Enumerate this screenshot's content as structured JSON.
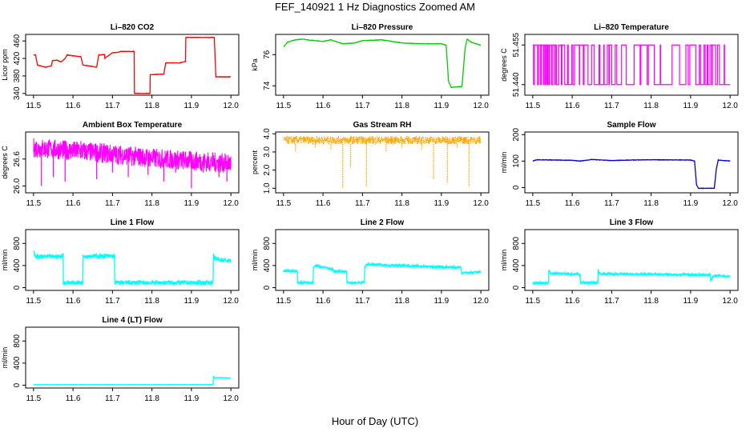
{
  "figure": {
    "title": "FEF_140921  1 Hz Diagnostics Zoomed AM",
    "xlabel": "Hour of Day (UTC)"
  },
  "chart_data": [
    {
      "type": "line",
      "title": "Li–820 CO2",
      "ylabel": "Licor ppm",
      "color": "#ff0000",
      "xlim": [
        11.48,
        12.02
      ],
      "ylim": [
        336,
        475
      ],
      "x_ticks": [
        "11.5",
        "11.6",
        "11.7",
        "11.8",
        "11.9",
        "12.0"
      ],
      "y_ticks": [
        "340",
        "380",
        "420",
        "460"
      ],
      "series": [
        {
          "x": [
            11.5,
            11.505,
            11.51,
            11.53,
            11.545,
            11.548,
            11.56,
            11.57,
            11.58,
            11.585,
            11.6,
            11.62,
            11.625,
            11.64,
            11.66,
            11.665,
            11.68,
            11.68,
            11.7,
            11.715,
            11.72,
            11.74,
            11.755,
            11.755,
            11.795,
            11.795,
            11.83,
            11.835,
            11.87,
            11.885,
            11.885,
            11.958,
            11.962,
            11.98,
            12.0
          ],
          "y": [
            428,
            428,
            405,
            400,
            403,
            415,
            416,
            412,
            420,
            428,
            426,
            424,
            405,
            403,
            400,
            428,
            429,
            420,
            433,
            434,
            436,
            436,
            436,
            340,
            340,
            383,
            384,
            410,
            410,
            413,
            468,
            468,
            378,
            378,
            378
          ]
        }
      ]
    },
    {
      "type": "line",
      "title": "Li–820 Pressure",
      "ylabel": "kPa",
      "color": "#00cc00",
      "xlim": [
        11.48,
        12.02
      ],
      "ylim": [
        73.4,
        77.3
      ],
      "x_ticks": [
        "11.5",
        "11.6",
        "11.7",
        "11.8",
        "11.9",
        "12.0"
      ],
      "y_ticks": [
        "74",
        "76"
      ],
      "series": [
        {
          "x": [
            11.5,
            11.51,
            11.53,
            11.55,
            11.56,
            11.6,
            11.62,
            11.65,
            11.68,
            11.7,
            11.75,
            11.8,
            11.85,
            11.9,
            11.912,
            11.918,
            11.925,
            11.945,
            11.952,
            11.96,
            11.965,
            11.975,
            12.0
          ],
          "y": [
            76.5,
            76.8,
            76.95,
            77.0,
            76.95,
            76.85,
            76.95,
            76.7,
            76.75,
            76.9,
            76.95,
            76.75,
            76.7,
            76.7,
            76.6,
            74.3,
            73.9,
            73.95,
            73.95,
            76.4,
            77.0,
            76.8,
            76.6
          ]
        }
      ]
    },
    {
      "type": "line",
      "title": "Li–820 Temperature",
      "ylabel": "degrees C",
      "color": "#ff00ff",
      "xlim": [
        11.48,
        12.02
      ],
      "ylim": [
        51.436,
        51.459
      ],
      "x_ticks": [
        "11.5",
        "11.6",
        "11.7",
        "11.8",
        "11.9",
        "12.0"
      ],
      "y_ticks": [
        "51.440",
        "51.455"
      ],
      "levels": [
        51.44,
        51.455
      ],
      "toggle_x": [
        11.502,
        11.504,
        11.512,
        11.515,
        11.52,
        11.522,
        11.527,
        11.529,
        11.532,
        11.533,
        11.536,
        11.538,
        11.541,
        11.543,
        11.548,
        11.551,
        11.556,
        11.557,
        11.56,
        11.566,
        11.572,
        11.574,
        11.581,
        11.588,
        11.59,
        11.599,
        11.602,
        11.606,
        11.618,
        11.619,
        11.628,
        11.63,
        11.64,
        11.649,
        11.656,
        11.668,
        11.67,
        11.68,
        11.681,
        11.689,
        11.693,
        11.694,
        11.7,
        11.709,
        11.713,
        11.725,
        11.737,
        11.757,
        11.772,
        11.774,
        11.79,
        11.793,
        11.808,
        11.823,
        11.824,
        11.853,
        11.872,
        11.888,
        11.894,
        11.898,
        11.913,
        11.922,
        11.925,
        11.934,
        11.937,
        11.942,
        11.944,
        11.949,
        11.953,
        11.955,
        11.963,
        11.968,
        11.973,
        11.985,
        11.986
      ]
    },
    {
      "type": "line",
      "title": "Ambient Box Temperature",
      "ylabel": "degrees C",
      "color": "#ff00ff",
      "xlim": [
        11.48,
        12.02
      ],
      "ylim": [
        25.85,
        27.2
      ],
      "x_ticks": [
        "11.5",
        "11.6",
        "11.7",
        "11.8",
        "11.9",
        "12.0"
      ],
      "y_ticks": [
        "26.0",
        "26.6"
      ],
      "band_center": [
        26.85,
        26.75,
        26.62,
        26.5
      ],
      "band_halfwidth": 0.22,
      "spike_x": [
        11.52,
        11.55,
        11.58,
        11.62,
        11.66,
        11.7,
        11.74,
        11.79,
        11.83,
        11.86,
        11.9,
        11.93,
        11.97,
        11.99
      ],
      "spike_y": [
        26.0,
        26.2,
        26.1,
        27.0,
        26.15,
        26.3,
        26.2,
        26.25,
        26.1,
        26.3,
        25.95,
        26.3,
        26.2,
        26.1
      ]
    },
    {
      "type": "line",
      "title": "Gas Stream RH",
      "ylabel": "percent",
      "color": "#ffa500",
      "xlim": [
        11.48,
        12.02
      ],
      "ylim": [
        0.75,
        4.1
      ],
      "x_ticks": [
        "11.5",
        "11.6",
        "11.7",
        "11.8",
        "11.9",
        "12.0"
      ],
      "y_ticks": [
        "1.0",
        "2.0",
        "3.0",
        "4.0"
      ],
      "baseline": 3.65,
      "dip_x": [
        11.53,
        11.58,
        11.62,
        11.65,
        11.67,
        11.71,
        11.76,
        11.8,
        11.85,
        11.88,
        11.915,
        11.94,
        11.97
      ],
      "dip_y": [
        3.0,
        3.2,
        3.1,
        1.0,
        2.1,
        1.1,
        3.0,
        3.2,
        3.1,
        1.5,
        1.3,
        3.2,
        1.1
      ]
    },
    {
      "type": "line",
      "title": "Sample Flow",
      "ylabel": "ml/min",
      "color": "#0000cc",
      "xlim": [
        11.48,
        12.02
      ],
      "ylim": [
        -20,
        210
      ],
      "x_ticks": [
        "11.5",
        "11.6",
        "11.7",
        "11.8",
        "11.9",
        "12.0"
      ],
      "y_ticks": [
        "0",
        "100",
        "200"
      ],
      "series": [
        {
          "x": [
            11.5,
            11.51,
            11.6,
            11.62,
            11.65,
            11.7,
            11.75,
            11.8,
            11.9,
            11.91,
            11.915,
            11.92,
            11.96,
            11.965,
            11.97,
            12.0
          ],
          "y": [
            100,
            105,
            103,
            100,
            106,
            102,
            104,
            105,
            104,
            100,
            10,
            -3,
            -3,
            70,
            104,
            100
          ]
        }
      ]
    },
    {
      "type": "line",
      "title": "Line 1 Flow",
      "ylabel": "ml/min",
      "color": "#00ffff",
      "xlim": [
        11.48,
        12.02
      ],
      "ylim": [
        -50,
        1050
      ],
      "x_ticks": [
        "11.5",
        "11.6",
        "11.7",
        "11.8",
        "11.9",
        "12.0"
      ],
      "y_ticks": [
        "0",
        "400",
        "800"
      ],
      "series": [
        {
          "x": [
            11.5,
            11.505,
            11.57,
            11.575,
            11.575,
            11.625,
            11.625,
            11.63,
            11.705,
            11.705,
            11.955,
            11.955,
            11.96,
            12.0
          ],
          "y": [
            640,
            560,
            560,
            600,
            90,
            90,
            620,
            570,
            570,
            90,
            90,
            580,
            520,
            480
          ]
        }
      ],
      "noise": 80
    },
    {
      "type": "line",
      "title": "Line 2 Flow",
      "ylabel": "ml/min",
      "color": "#00ffff",
      "xlim": [
        11.48,
        12.02
      ],
      "ylim": [
        -50,
        1050
      ],
      "x_ticks": [
        "11.5",
        "11.6",
        "11.7",
        "11.8",
        "11.9",
        "12.0"
      ],
      "y_ticks": [
        "0",
        "400",
        "800"
      ],
      "series": [
        {
          "x": [
            11.5,
            11.535,
            11.535,
            11.575,
            11.575,
            11.58,
            11.625,
            11.625,
            11.66,
            11.66,
            11.705,
            11.705,
            11.71,
            11.95,
            11.95,
            12.0
          ],
          "y": [
            300,
            300,
            90,
            90,
            330,
            400,
            330,
            300,
            290,
            90,
            90,
            340,
            420,
            360,
            260,
            280
          ]
        }
      ],
      "noise": 45
    },
    {
      "type": "line",
      "title": "Line 3 Flow",
      "ylabel": "ml/min",
      "color": "#00ffff",
      "xlim": [
        11.48,
        12.02
      ],
      "ylim": [
        -50,
        1050
      ],
      "x_ticks": [
        "11.5",
        "11.6",
        "11.7",
        "11.8",
        "11.9",
        "12.0"
      ],
      "y_ticks": [
        "0",
        "400",
        "800"
      ],
      "series": [
        {
          "x": [
            11.5,
            11.54,
            11.54,
            11.545,
            11.62,
            11.62,
            11.665,
            11.665,
            11.67,
            11.95,
            11.95,
            11.96,
            12.0
          ],
          "y": [
            80,
            80,
            320,
            260,
            240,
            90,
            90,
            330,
            250,
            230,
            120,
            220,
            200
          ]
        }
      ],
      "noise": 45
    },
    {
      "type": "line",
      "title": "Line 4 (LT) Flow",
      "ylabel": "ml/min",
      "color": "#00ffff",
      "xlim": [
        11.48,
        12.02
      ],
      "ylim": [
        -50,
        1050
      ],
      "x_ticks": [
        "11.5",
        "11.6",
        "11.7",
        "11.8",
        "11.9",
        "12.0"
      ],
      "y_ticks": [
        "0",
        "400",
        "800"
      ],
      "series": [
        {
          "x": [
            11.5,
            11.955,
            11.955,
            11.96,
            11.97,
            12.0
          ],
          "y": [
            10,
            10,
            170,
            130,
            140,
            130
          ]
        }
      ],
      "noise": 6
    }
  ]
}
